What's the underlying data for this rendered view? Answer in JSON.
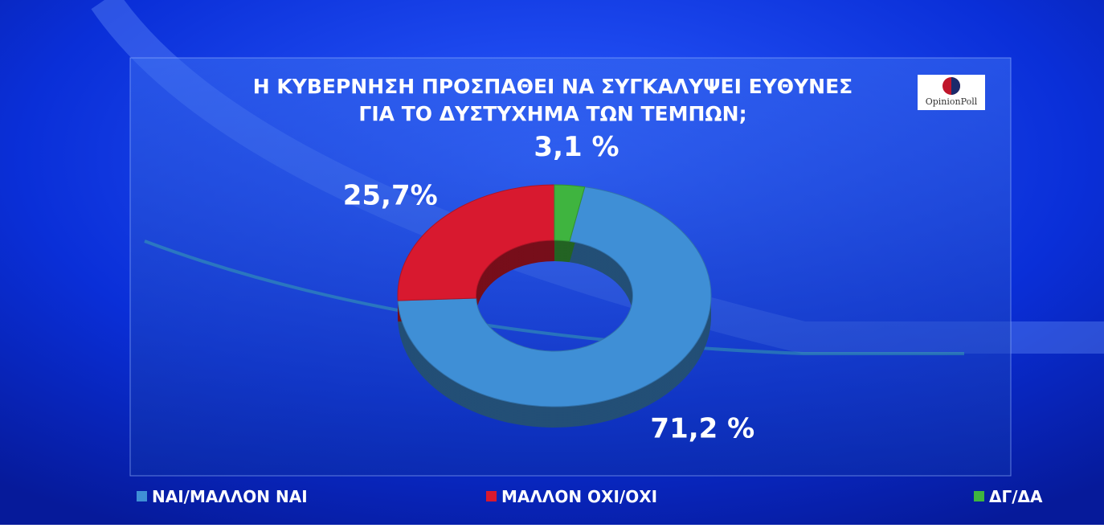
{
  "chart_data": {
    "type": "donut",
    "title": [
      "Η ΚΥΒΕΡΝΗΣΗ ΠΡΟΣΠΑΘΕΙ ΝΑ ΣΥΓΚΑΛΥΨΕΙ ΕΥΘΥΝΕΣ",
      "ΓΙΑ ΤΟ ΔΥΣΤΥΧΗΜΑ ΤΩΝ ΤΕΜΠΩΝ;"
    ],
    "source": "OpinionPoll",
    "categories": [
      "ΝΑΙ/ΜΑΛΛΟΝ ΝΑΙ",
      "ΜΑΛΛΟΝ ΟΧΙ/ΟΧΙ",
      "ΔΓ/ΔΑ"
    ],
    "values": [
      71.2,
      25.7,
      3.1
    ],
    "value_labels": [
      "71,2 %",
      "25,7%",
      "3,1 %"
    ],
    "colors": [
      "#3f8fd6",
      "#d8192f",
      "#3fb43f"
    ]
  }
}
